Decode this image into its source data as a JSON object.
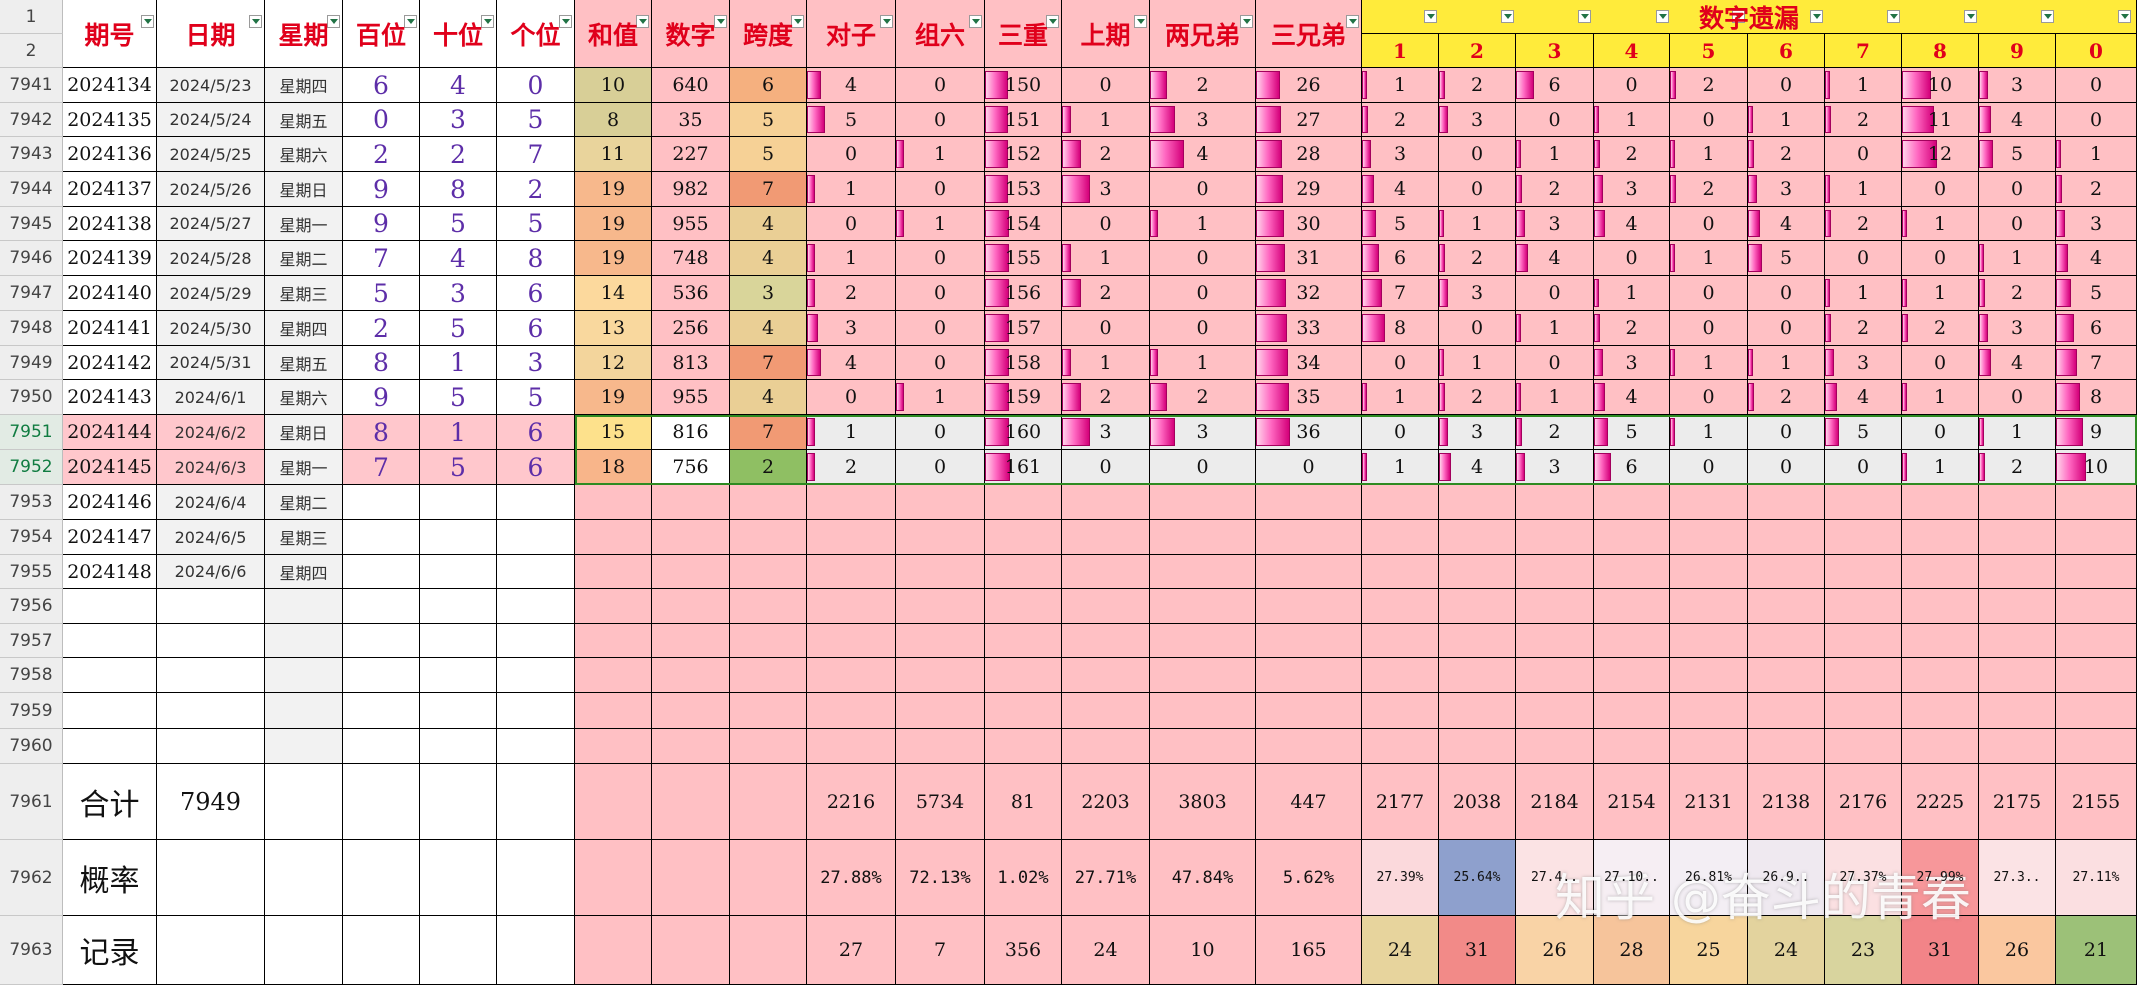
{
  "row_numbers": [
    "1",
    "2",
    "7941",
    "7942",
    "7943",
    "7944",
    "7945",
    "7946",
    "7947",
    "7948",
    "7949",
    "7950",
    "7951",
    "7952",
    "7953",
    "7954",
    "7955",
    "7956",
    "7957",
    "7958",
    "7959",
    "7960",
    "7961",
    "7962",
    "7963"
  ],
  "headers": {
    "period": "期号",
    "date": "日期",
    "weekday": "星期",
    "hundreds": "百位",
    "tens": "十位",
    "ones": "个位",
    "sum": "和值",
    "number": "数字",
    "span": "跨度",
    "pair": "对子",
    "group6": "组六",
    "triple": "三重",
    "last_period": "上期",
    "two_brothers": "两兄弟",
    "three_brothers": "三兄弟",
    "digit_omission": "数字遗漏",
    "digits": [
      "1",
      "2",
      "3",
      "4",
      "5",
      "6",
      "7",
      "8",
      "9",
      "0"
    ]
  },
  "rows": [
    {
      "period": "2024134",
      "date": "2024/5/23",
      "weekday": "星期四",
      "h": "6",
      "t": "4",
      "o": "0",
      "sum": "10",
      "num": "640",
      "span": "6",
      "pair": "4",
      "g6": "0",
      "triple": "150",
      "last": "0",
      "two": "2",
      "three": "26",
      "miss": [
        "1",
        "2",
        "6",
        "0",
        "2",
        "0",
        "1",
        "10",
        "3",
        "0"
      ]
    },
    {
      "period": "2024135",
      "date": "2024/5/24",
      "weekday": "星期五",
      "h": "0",
      "t": "3",
      "o": "5",
      "sum": "8",
      "num": "35",
      "span": "5",
      "pair": "5",
      "g6": "0",
      "triple": "151",
      "last": "1",
      "two": "3",
      "three": "27",
      "miss": [
        "2",
        "3",
        "0",
        "1",
        "0",
        "1",
        "2",
        "11",
        "4",
        "0"
      ]
    },
    {
      "period": "2024136",
      "date": "2024/5/25",
      "weekday": "星期六",
      "h": "2",
      "t": "2",
      "o": "7",
      "sum": "11",
      "num": "227",
      "span": "5",
      "pair": "0",
      "g6": "1",
      "triple": "152",
      "last": "2",
      "two": "4",
      "three": "28",
      "miss": [
        "3",
        "0",
        "1",
        "2",
        "1",
        "2",
        "0",
        "12",
        "5",
        "1"
      ]
    },
    {
      "period": "2024137",
      "date": "2024/5/26",
      "weekday": "星期日",
      "h": "9",
      "t": "8",
      "o": "2",
      "sum": "19",
      "num": "982",
      "span": "7",
      "pair": "1",
      "g6": "0",
      "triple": "153",
      "last": "3",
      "two": "0",
      "three": "29",
      "miss": [
        "4",
        "0",
        "2",
        "3",
        "2",
        "3",
        "1",
        "0",
        "0",
        "2"
      ]
    },
    {
      "period": "2024138",
      "date": "2024/5/27",
      "weekday": "星期一",
      "h": "9",
      "t": "5",
      "o": "5",
      "sum": "19",
      "num": "955",
      "span": "4",
      "pair": "0",
      "g6": "1",
      "triple": "154",
      "last": "0",
      "two": "1",
      "three": "30",
      "miss": [
        "5",
        "1",
        "3",
        "4",
        "0",
        "4",
        "2",
        "1",
        "0",
        "3"
      ]
    },
    {
      "period": "2024139",
      "date": "2024/5/28",
      "weekday": "星期二",
      "h": "7",
      "t": "4",
      "o": "8",
      "sum": "19",
      "num": "748",
      "span": "4",
      "pair": "1",
      "g6": "0",
      "triple": "155",
      "last": "1",
      "two": "0",
      "three": "31",
      "miss": [
        "6",
        "2",
        "4",
        "0",
        "1",
        "5",
        "0",
        "0",
        "1",
        "4"
      ]
    },
    {
      "period": "2024140",
      "date": "2024/5/29",
      "weekday": "星期三",
      "h": "5",
      "t": "3",
      "o": "6",
      "sum": "14",
      "num": "536",
      "span": "3",
      "pair": "2",
      "g6": "0",
      "triple": "156",
      "last": "2",
      "two": "0",
      "three": "32",
      "miss": [
        "7",
        "3",
        "0",
        "1",
        "0",
        "0",
        "1",
        "1",
        "2",
        "5"
      ]
    },
    {
      "period": "2024141",
      "date": "2024/5/30",
      "weekday": "星期四",
      "h": "2",
      "t": "5",
      "o": "6",
      "sum": "13",
      "num": "256",
      "span": "4",
      "pair": "3",
      "g6": "0",
      "triple": "157",
      "last": "0",
      "two": "0",
      "three": "33",
      "miss": [
        "8",
        "0",
        "1",
        "2",
        "0",
        "0",
        "2",
        "2",
        "3",
        "6"
      ]
    },
    {
      "period": "2024142",
      "date": "2024/5/31",
      "weekday": "星期五",
      "h": "8",
      "t": "1",
      "o": "3",
      "sum": "12",
      "num": "813",
      "span": "7",
      "pair": "4",
      "g6": "0",
      "triple": "158",
      "last": "1",
      "two": "1",
      "three": "34",
      "miss": [
        "0",
        "1",
        "0",
        "3",
        "1",
        "1",
        "3",
        "0",
        "4",
        "7"
      ]
    },
    {
      "period": "2024143",
      "date": "2024/6/1",
      "weekday": "星期六",
      "h": "9",
      "t": "5",
      "o": "5",
      "sum": "19",
      "num": "955",
      "span": "4",
      "pair": "0",
      "g6": "1",
      "triple": "159",
      "last": "2",
      "two": "2",
      "three": "35",
      "miss": [
        "1",
        "2",
        "1",
        "4",
        "0",
        "2",
        "4",
        "1",
        "0",
        "8"
      ]
    },
    {
      "period": "2024144",
      "date": "2024/6/2",
      "weekday": "星期日",
      "h": "8",
      "t": "1",
      "o": "6",
      "sum": "15",
      "num": "816",
      "span": "7",
      "pair": "1",
      "g6": "0",
      "triple": "160",
      "last": "3",
      "two": "3",
      "three": "36",
      "miss": [
        "0",
        "3",
        "2",
        "5",
        "1",
        "0",
        "5",
        "0",
        "1",
        "9"
      ]
    },
    {
      "period": "2024145",
      "date": "2024/6/3",
      "weekday": "星期一",
      "h": "7",
      "t": "5",
      "o": "6",
      "sum": "18",
      "num": "756",
      "span": "2",
      "pair": "2",
      "g6": "0",
      "triple": "161",
      "last": "0",
      "two": "0",
      "three": "0",
      "miss": [
        "1",
        "4",
        "3",
        "6",
        "0",
        "0",
        "0",
        "1",
        "2",
        "10"
      ]
    },
    {
      "period": "2024146",
      "date": "2024/6/4",
      "weekday": "星期二"
    },
    {
      "period": "2024147",
      "date": "2024/6/5",
      "weekday": "星期三"
    },
    {
      "period": "2024148",
      "date": "2024/6/6",
      "weekday": "星期四"
    }
  ],
  "summary": {
    "total": {
      "label": "合计",
      "count": "7949",
      "pair": "2216",
      "g6": "5734",
      "triple": "81",
      "last": "2203",
      "two": "3803",
      "three": "447",
      "digits": [
        "2177",
        "2038",
        "2184",
        "2154",
        "2131",
        "2138",
        "2176",
        "2225",
        "2175",
        "2155"
      ]
    },
    "probability": {
      "label": "概率",
      "pair": "27.88%",
      "g6": "72.13%",
      "triple": "1.02%",
      "last": "27.71%",
      "two": "47.84%",
      "three": "5.62%",
      "digits": [
        "27.39%",
        "25.64%",
        "27.4..",
        "27.10..",
        "26.81%",
        "26.9..",
        "27.37%",
        "27.99%",
        "27.3..",
        "27.11%"
      ]
    },
    "record": {
      "label": "记录",
      "pair": "27",
      "g6": "7",
      "triple": "356",
      "last": "24",
      "two": "10",
      "three": "165",
      "digits": [
        "24",
        "31",
        "26",
        "28",
        "25",
        "24",
        "23",
        "31",
        "26",
        "21"
      ]
    }
  },
  "colors": {
    "pink_bg": "#ffc0c4",
    "header_yellow": "#ffeb3b",
    "selection_green": "#2e8b22",
    "bar_magenta": "#e0007f",
    "digit_purple": "#5d2ea8",
    "header_red": "#e0001b"
  },
  "watermark": "知乎 @奋斗的青春"
}
